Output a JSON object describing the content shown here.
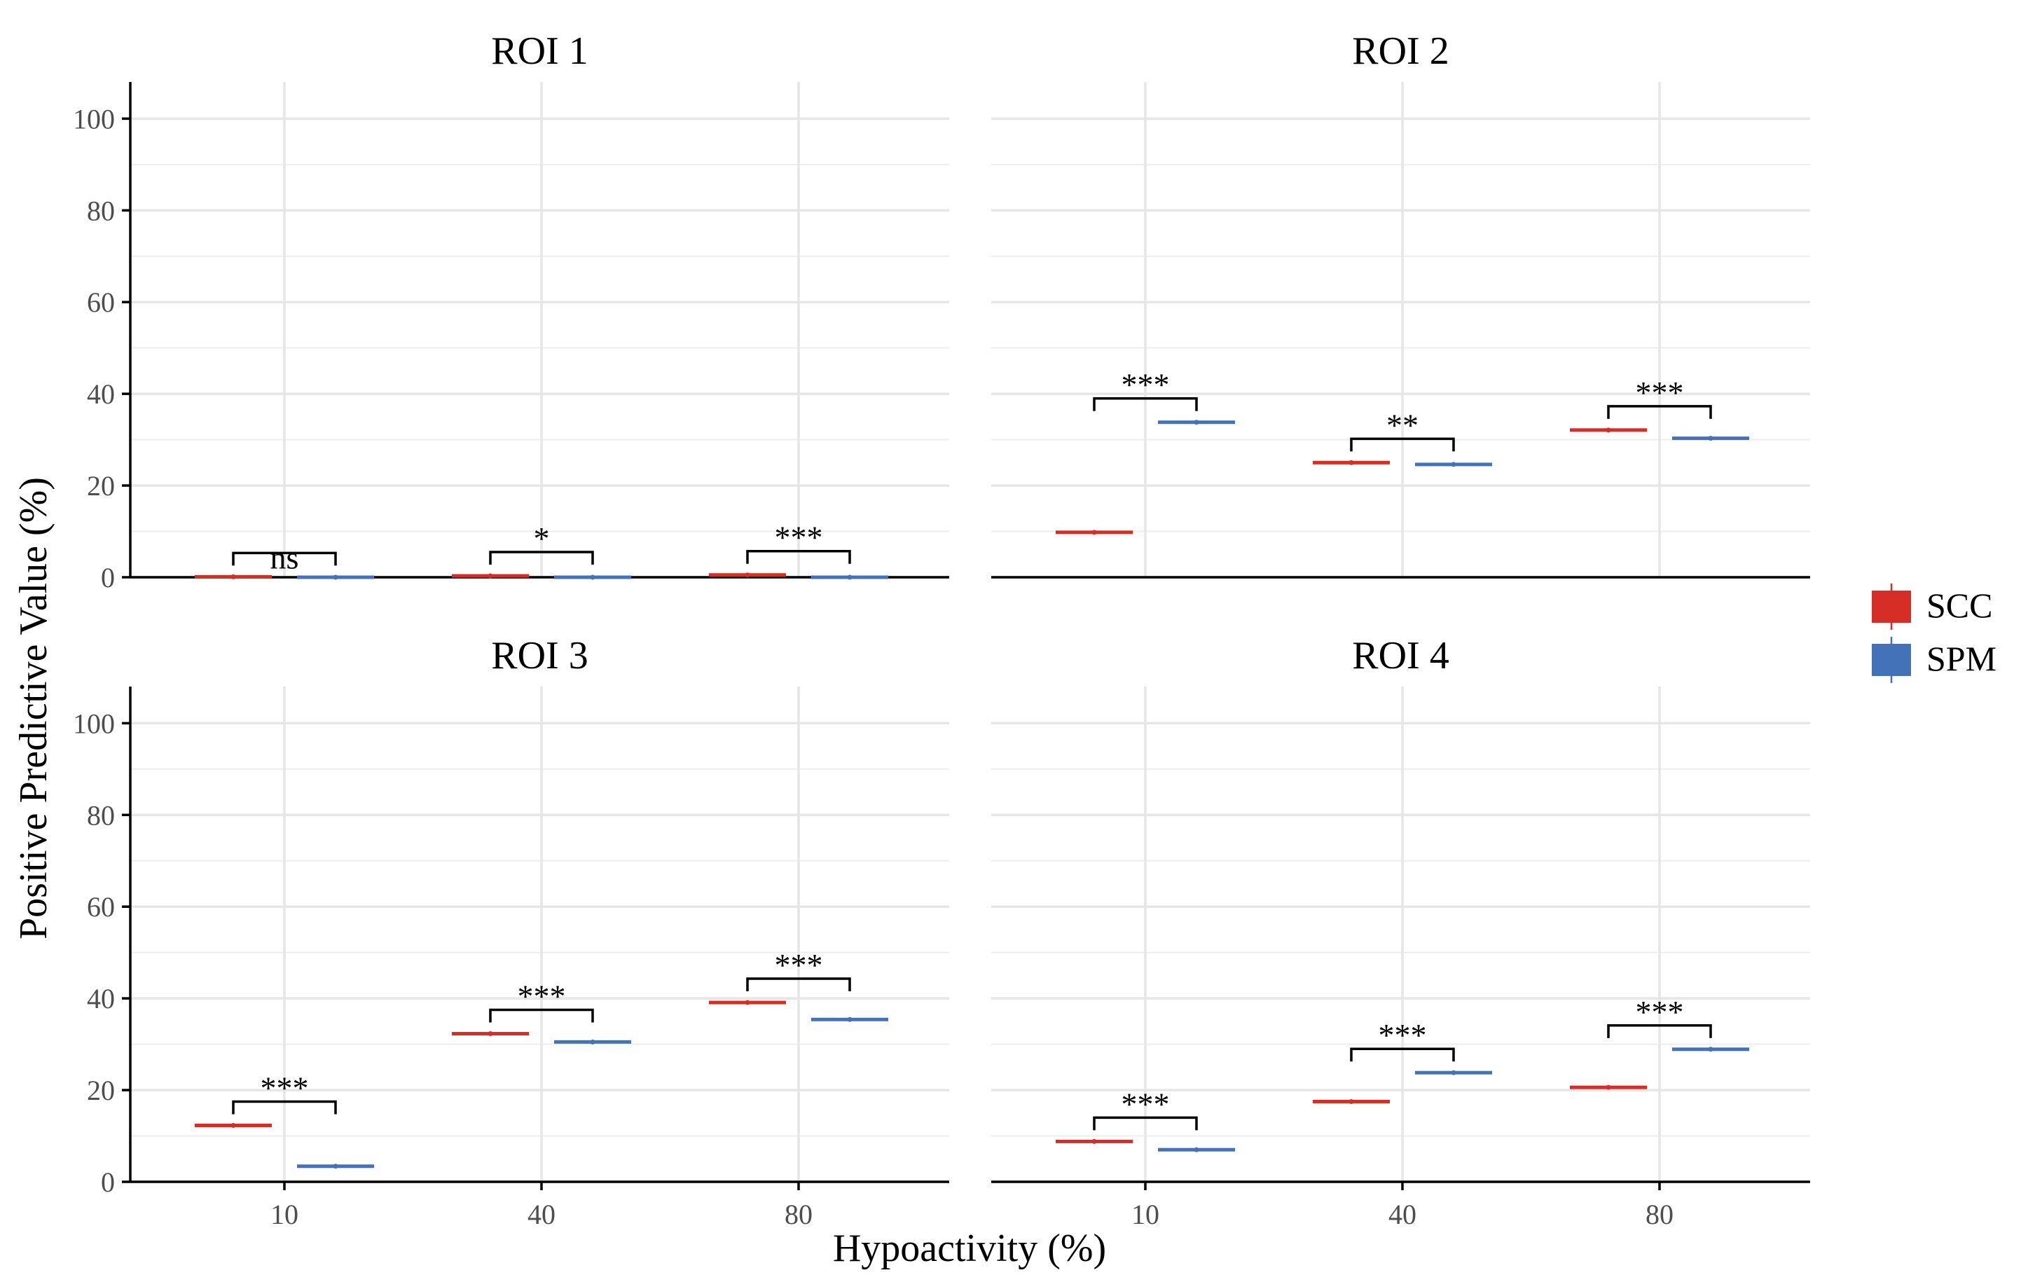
{
  "chart_data": {
    "type": "box",
    "ylabel": "Positive Predictive Value (%)",
    "xlabel": "Hypoactivity (%)",
    "categories": [
      "10",
      "40",
      "80"
    ],
    "y_ticks": [
      "0",
      "20",
      "40",
      "60",
      "80",
      "100"
    ],
    "ylim": [
      0,
      108
    ],
    "grid": true,
    "legend": {
      "position": "right",
      "items": [
        {
          "name": "SCC",
          "color": "#d62e26"
        },
        {
          "name": "SPM",
          "color": "#4472b8"
        }
      ]
    },
    "panels": [
      {
        "title": "ROI 1",
        "series": [
          {
            "name": "SCC",
            "values": [
              0.1,
              0.3,
              0.5
            ]
          },
          {
            "name": "SPM",
            "values": [
              0.0,
              0.0,
              0.0
            ]
          }
        ],
        "significance": [
          "ns",
          "*",
          "***"
        ]
      },
      {
        "title": "ROI 2",
        "series": [
          {
            "name": "SCC",
            "values": [
              9.8,
              25.0,
              32.1
            ]
          },
          {
            "name": "SPM",
            "values": [
              33.8,
              24.6,
              30.3
            ]
          }
        ],
        "significance": [
          "***",
          "**",
          "***"
        ]
      },
      {
        "title": "ROI 3",
        "series": [
          {
            "name": "SCC",
            "values": [
              12.3,
              32.3,
              39.1
            ]
          },
          {
            "name": "SPM",
            "values": [
              3.4,
              30.5,
              35.4
            ]
          }
        ],
        "significance": [
          "***",
          "***",
          "***"
        ]
      },
      {
        "title": "ROI 4",
        "series": [
          {
            "name": "SCC",
            "values": [
              8.8,
              17.5,
              20.6
            ]
          },
          {
            "name": "SPM",
            "values": [
              7.0,
              23.8,
              28.9
            ]
          }
        ],
        "significance": [
          "***",
          "***",
          "***"
        ]
      }
    ]
  }
}
